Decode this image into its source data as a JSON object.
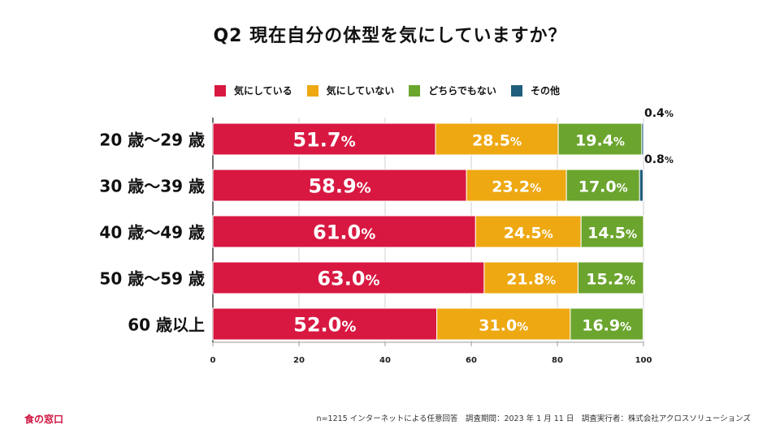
{
  "chart_data": {
    "type": "bar",
    "orientation": "horizontal",
    "stacked": true,
    "title": "Q2 現在自分の体型を気にしていますか？",
    "categories": [
      "20 歳〜29 歳",
      "30 歳〜39 歳",
      "40 歳〜49 歳",
      "50 歳〜59 歳",
      "60 歳以上"
    ],
    "series": [
      {
        "name": "気にしている",
        "color": "#d81841",
        "values": [
          51.7,
          58.9,
          61.0,
          63.0,
          52.0
        ],
        "labels": [
          "51.7",
          "58.9",
          "61.0",
          "63.0",
          "52.0"
        ]
      },
      {
        "name": "気にしていない",
        "color": "#eea812",
        "values": [
          28.5,
          23.2,
          24.5,
          21.8,
          31.0
        ],
        "labels": [
          "28.5",
          "23.2",
          "24.5",
          "21.8",
          "31.0"
        ]
      },
      {
        "name": "どちらでもない",
        "color": "#6ba52e",
        "values": [
          19.4,
          17.0,
          14.5,
          15.2,
          16.9
        ],
        "labels": [
          "19.4",
          "17.0",
          "14.5",
          "15.2",
          "16.9"
        ]
      },
      {
        "name": "その他",
        "color": "#1f5e7c",
        "values": [
          0.4,
          0.8,
          0,
          0,
          0
        ],
        "labels": [
          "0.4",
          "0.8",
          "",
          "",
          ""
        ]
      }
    ],
    "percent_sign": "%",
    "xlim": [
      0,
      100
    ],
    "xticks": [
      "0",
      "20",
      "40",
      "60",
      "80",
      "100"
    ],
    "xlabel": "",
    "ylabel": "",
    "legend_position": "top"
  },
  "footer": {
    "source": "n=1215 インターネットによる任意回答　調査期間：2023 年 1 月 11 日　調査実行者：株式会社アクロスソリューションズ",
    "logo": "食の窓口"
  }
}
